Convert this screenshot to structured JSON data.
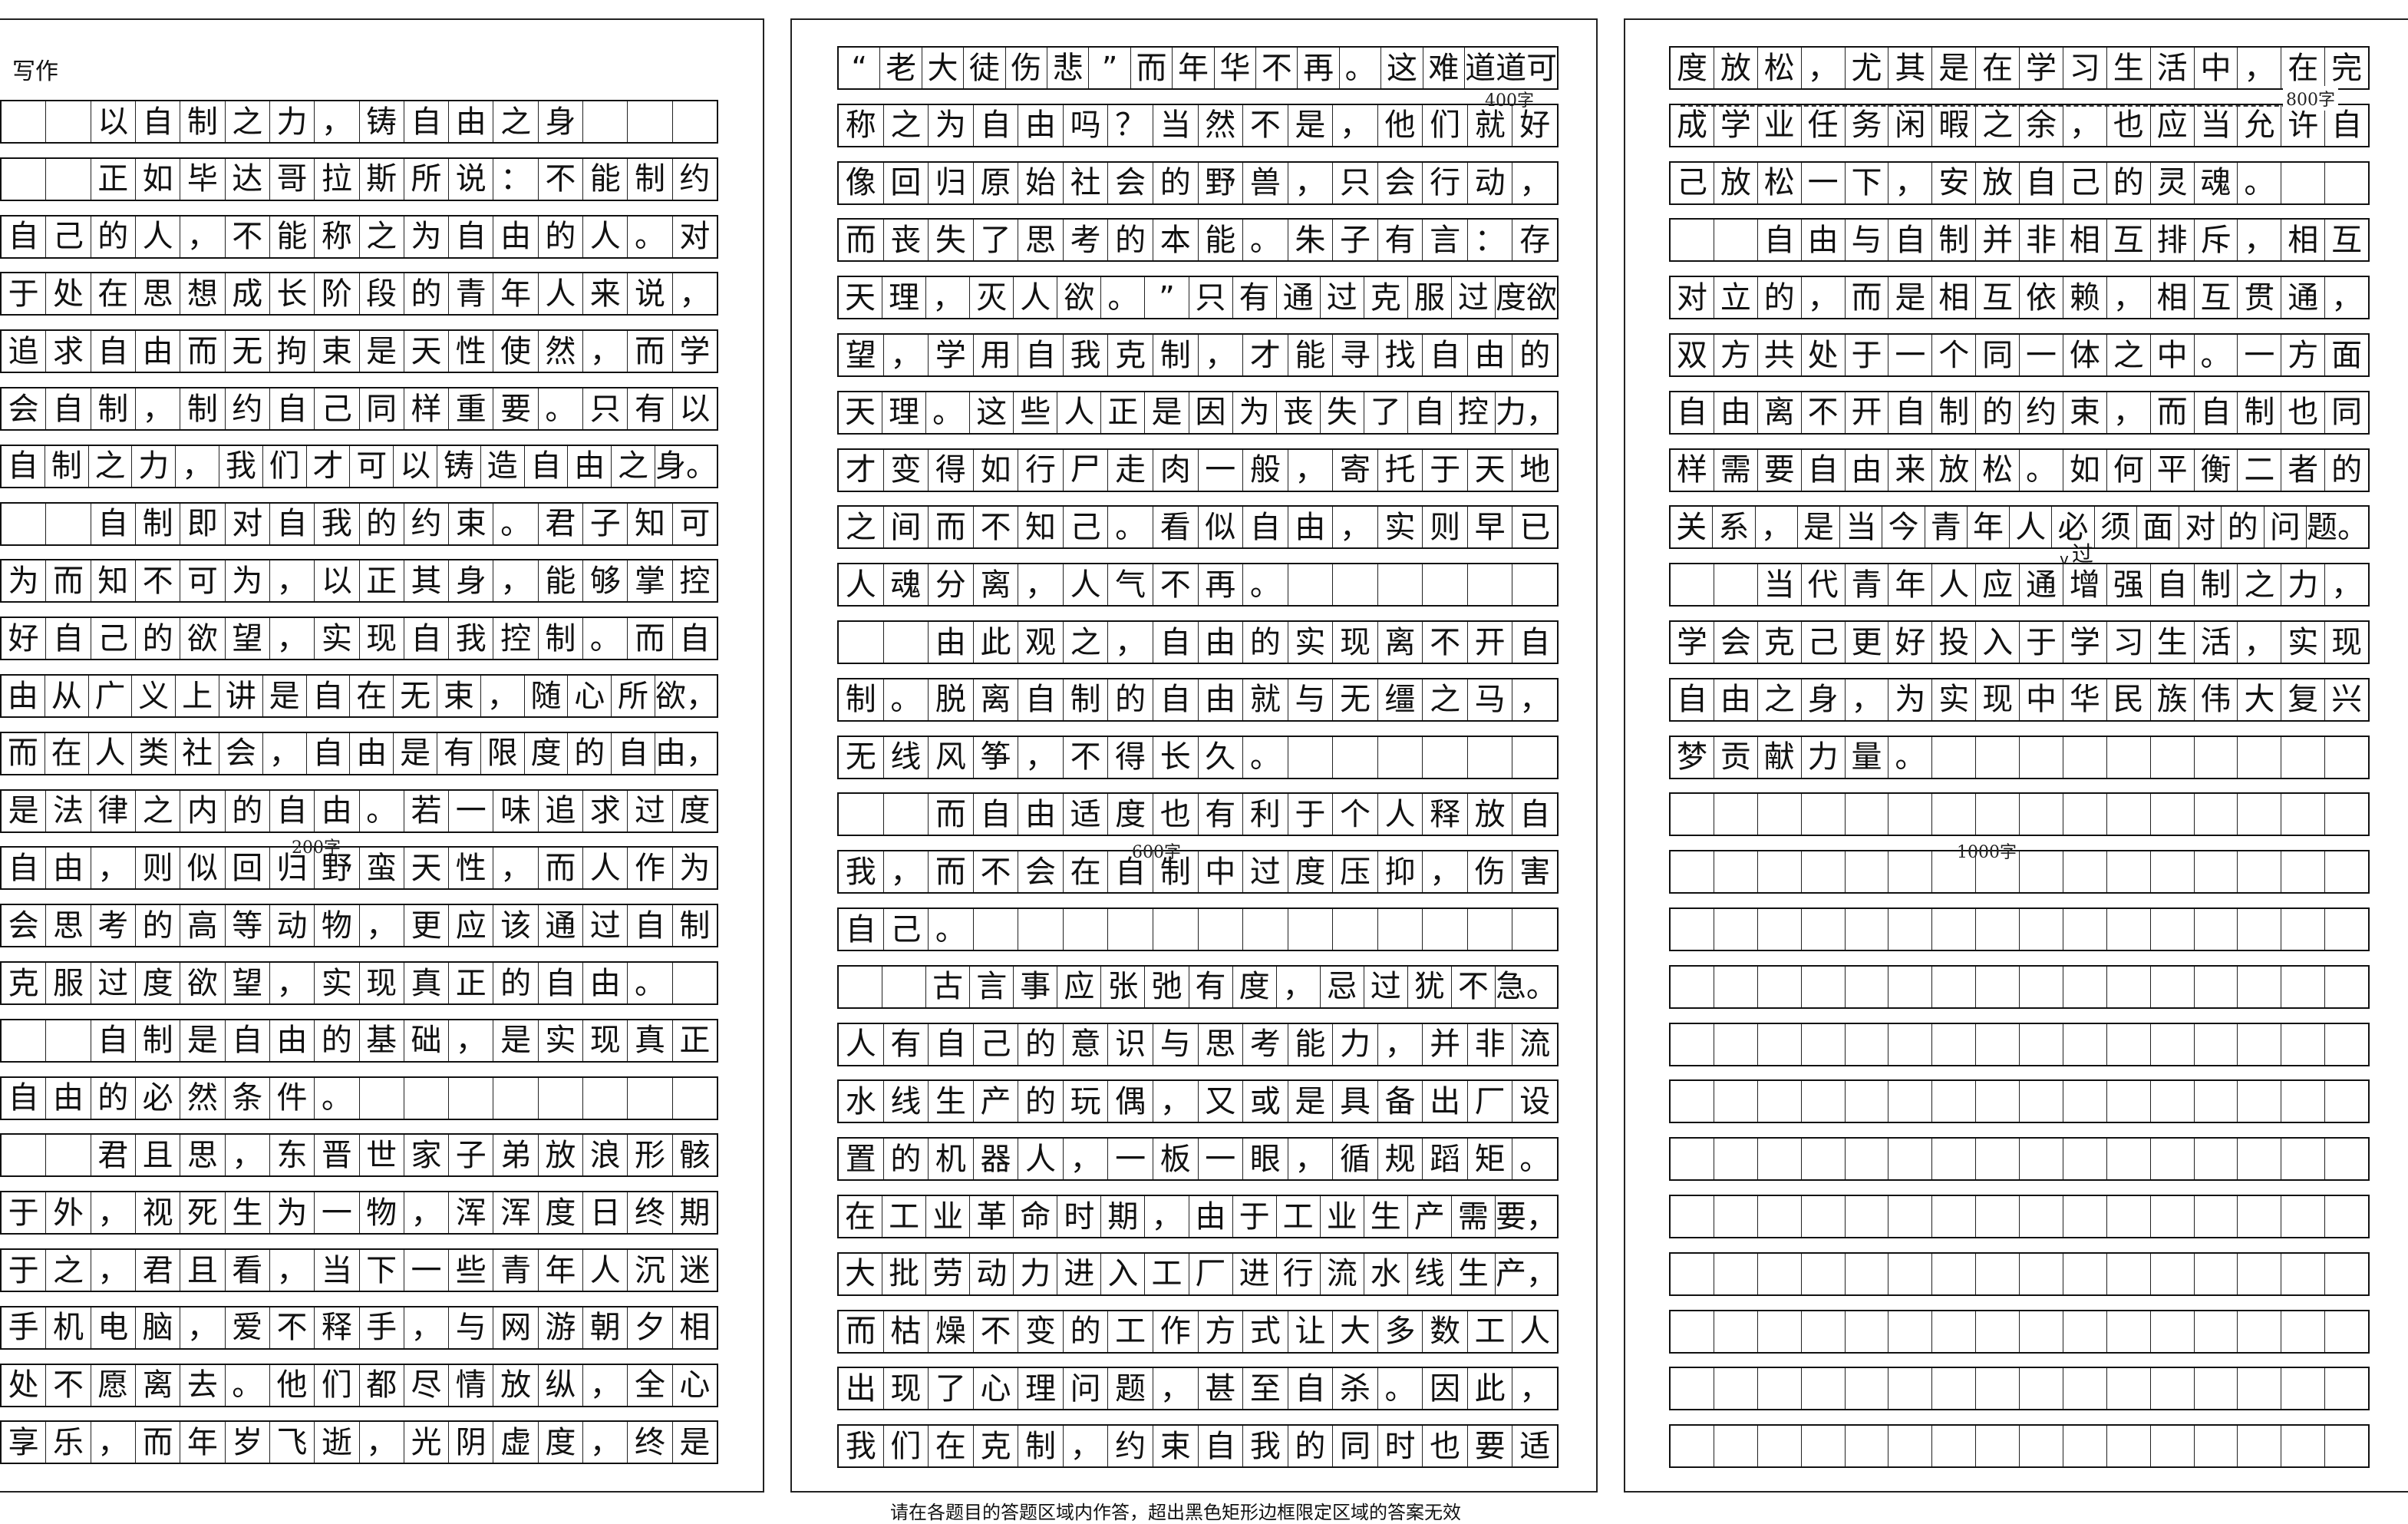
{
  "section_title": "写作",
  "cells_per_row": 16,
  "columns": [
    {
      "rows": [
        "  以自制之力，铸自由之身",
        "  正如毕达哥拉斯所说：不能制约",
        "自己的人，不能称之为自由的人。对",
        "于处在思想成长阶段的青年人来说，",
        "追求自由而无拘束是天性使然，而学",
        "会自制，制约自己同样重要。只有以",
        "自制之力，我们才可以铸造自由之身。",
        "  自制即对自我的约束。君子知可",
        "为而知不可为，以正其身，能够掌控",
        "好自己的欲望，实现自我控制。而自",
        "由从广义上讲是自在无束，随心所欲，",
        "而在人类社会，自由是有限度的自由，",
        "是法律之内的自由。若一味追求过度",
        "自由，则似回归野蛮天性，而人作为",
        "会思考的高等动物，更应该通过自制",
        "克服过度欲望，实现真正的自由。",
        "  自制是自由的基础，是实现真正",
        "自由的必然条件。",
        "  君且思，东晋世家子弟放浪形骸",
        "于外，视死生为一物，浑浑度日终期",
        "于之，君且看，当下一些青年人沉迷",
        "手机电脑，爱不释手，与网游朝夕相",
        "处不愿离去。他们都尽情放纵，全心",
        "享乐，而年岁飞逝，光阴虚度，终是"
      ]
    },
    {
      "rows": [
        "“老大徒伤悲”而年华不再。这难道道可",
        "称之为自由吗？当然不是，他们就好",
        "像回归原始社会的野兽，只会行动，",
        "而丧失了思考的本能。朱子有言：存",
        "天理，灭人欲。”只有通过克服过度欲",
        "望，学用自我克制，才能寻找自由的",
        "天理。这些人正是因为丧失了自控力，",
        "才变得如行尸走肉一般，寄托于天地",
        "之间而不知己。看似自由，实则早已",
        "人魂分离，人气不再。",
        "  由此观之，自由的实现离不开自",
        "制。脱离自制的自由就与无缰之马，",
        "无线风筝，不得长久。",
        "  而自由适度也有利于个人释放自",
        "我，而不会在自制中过度压抑，伤害",
        "自己。",
        "  古言事应张弛有度，忌过犹不急。",
        "人有自己的意识与思考能力，并非流",
        "水线生产的玩偶，又或是具备出厂设",
        "置的机器人，一板一眼，循规蹈矩。",
        "在工业革命时期，由于工业生产需要，",
        "大批劳动力进入工厂进行流水线生产，",
        "而枯燥不变的工作方式让大多数工人",
        "出现了心理问题，甚至自杀。因此，",
        "我们在克制，约束自我的同时也要适"
      ]
    },
    {
      "rows": [
        "度放松，尤其是在学习生活中，在完",
        "成学业任务闲暇之余，也应当允许自",
        "己放松一下，安放自己的灵魂。",
        "  自由与自制并非相互排斥，相互",
        "对立的，而是相互依赖，相互贯通，",
        "双方共处于一个同一体之中。一方面",
        "自由离不开自制的约束，而自制也同",
        "样需要自由来放松。如何平衡二者的",
        "关系，是当今青年人必须面对的问题。",
        "  当代青年人应通增强自制之力，",
        "学会克己更好投入于学习生活，实现",
        "自由之身，为实现中华民族伟大复兴",
        "梦贡献力量。",
        "",
        "",
        "",
        "",
        "",
        "",
        "",
        "",
        "",
        "",
        "",
        ""
      ]
    }
  ],
  "word_markers": {
    "m200": "200字",
    "m400": "400字",
    "m600": "600字",
    "m800": "800字",
    "m1000": "1000字"
  },
  "insertion": "过",
  "footer": "请在各题目的答题区域内作答，超出黑色矩形边框限定区域的答案无效"
}
